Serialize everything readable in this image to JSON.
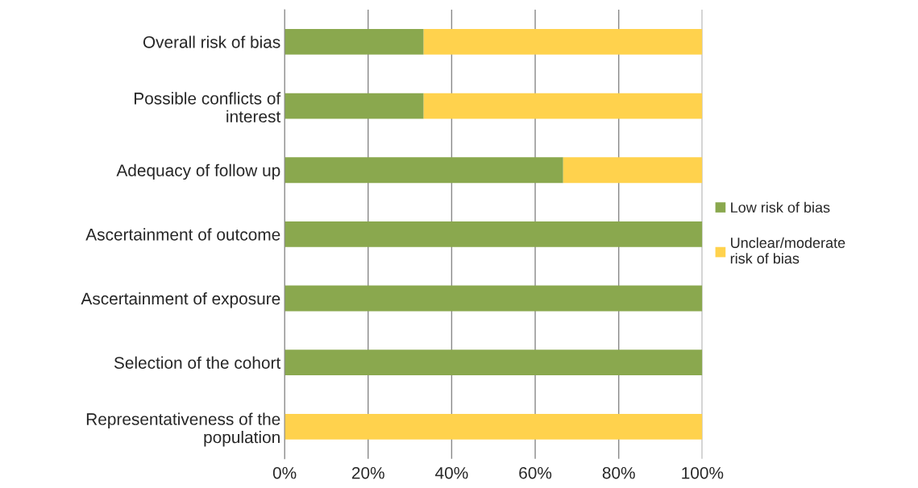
{
  "chart_data": {
    "type": "bar",
    "orientation": "horizontal",
    "stacked": true,
    "categories": [
      "Overall risk of bias",
      "Possible conflicts of\ninterest",
      "Adequacy of follow up",
      "Ascertainment of outcome",
      "Ascertainment of exposure",
      "Selection of the cohort",
      "Representativeness of the\npopulation"
    ],
    "series": [
      {
        "name": "Low risk of bias",
        "color": "#8aa84e",
        "values": [
          33.3,
          33.3,
          66.7,
          100,
          100,
          100,
          0
        ]
      },
      {
        "name": "Unclear/moderate\nrisk of bias",
        "color": "#ffd24d",
        "values": [
          66.7,
          66.7,
          33.3,
          0,
          0,
          0,
          100
        ]
      }
    ],
    "xlim": [
      0,
      100
    ],
    "xticks": [
      {
        "value": 0,
        "label": "0%"
      },
      {
        "value": 20,
        "label": "20%"
      },
      {
        "value": 40,
        "label": "40%"
      },
      {
        "value": 60,
        "label": "60%"
      },
      {
        "value": 80,
        "label": "80%"
      },
      {
        "value": 100,
        "label": "100%"
      }
    ],
    "grid": "x",
    "legend": "right"
  }
}
